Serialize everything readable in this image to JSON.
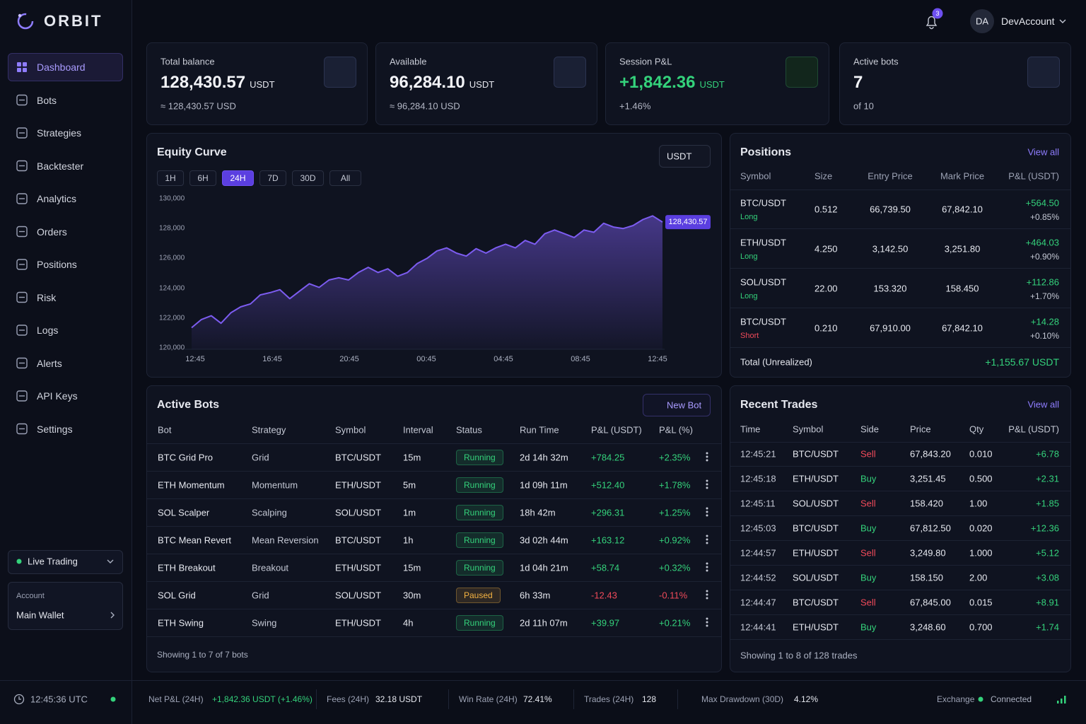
{
  "brand": "ORBIT",
  "nav": [
    "Dashboard",
    "Bots",
    "Strategies",
    "Backtester",
    "Analytics",
    "Orders",
    "Positions",
    "Risk",
    "Logs",
    "Alerts",
    "API Keys",
    "Settings"
  ],
  "active_nav": "Dashboard",
  "mode": "Live Trading",
  "account": {
    "label": "Account",
    "name": "Main Wallet"
  },
  "clock": "12:45:36 UTC",
  "notifications": "3",
  "user": {
    "initials": "DA",
    "name": "DevAccount"
  },
  "colors": {
    "+": "#34d27b",
    "-": "#f04a5a",
    "Long": "#34d27b",
    "Short": "#f04a5a",
    "Buy": "#34d27b",
    "Sell": "#f04a5a",
    "Running": "#34d27b",
    "Paused": "#f5b342"
  },
  "stats": [
    {
      "label": "Total balance",
      "value": "128,430.57",
      "unit": "USDT",
      "sub": "≈ 128,430.57 USD"
    },
    {
      "label": "Available",
      "value": "96,284.10",
      "unit": "USDT",
      "sub": "≈ 96,284.10 USD"
    },
    {
      "label": "Session P&L",
      "value": "+1,842.36",
      "unit": "USDT",
      "sub": "+1.46%"
    },
    {
      "label": "Active bots",
      "value": "7",
      "sub": "of 10"
    }
  ],
  "equity": {
    "currency": "USDT",
    "ranges": [
      "1H",
      "6H",
      "24H",
      "7D",
      "30D",
      "All"
    ],
    "active_range": "24H"
  },
  "chart_data": {
    "type": "line",
    "title": "Equity Curve",
    "color": "#7c5cf0",
    "area": true,
    "grid": false,
    "x_labels": [
      "12:45",
      "16:45",
      "20:45",
      "00:45",
      "04:45",
      "08:45",
      "12:45"
    ],
    "values": [
      121350,
      121900,
      122150,
      121650,
      122350,
      122750,
      122950,
      123550,
      123700,
      123900,
      123300,
      123800,
      124300,
      124050,
      124550,
      124700,
      124550,
      125050,
      125400,
      125050,
      125300,
      124800,
      125050,
      125650,
      126000,
      126500,
      126700,
      126350,
      126150,
      126650,
      126350,
      126700,
      126950,
      126700,
      127200,
      126950,
      127650,
      127900,
      127650,
      127400,
      127900,
      127750,
      128350,
      128100,
      128000,
      128200,
      128600,
      128850,
      128430.57
    ],
    "value_labels": [
      null,
      null,
      null,
      null,
      null,
      null,
      null,
      null,
      null,
      null,
      null,
      null,
      null,
      null,
      null,
      null,
      null,
      null,
      null,
      null,
      null,
      null,
      null,
      null,
      null,
      null,
      null,
      null,
      null,
      null,
      null,
      null,
      null,
      null,
      null,
      null,
      null,
      null,
      null,
      null,
      null,
      null,
      null,
      null,
      null,
      null,
      null,
      null,
      "128,430.57"
    ],
    "ylim": [
      120000,
      130000
    ],
    "yticks": [
      {
        "value": 130000,
        "label": "130,000"
      },
      {
        "value": 128000,
        "label": "128,000"
      },
      {
        "value": 126000,
        "label": "126,000"
      },
      {
        "value": 124000,
        "label": "124,000"
      },
      {
        "value": 122000,
        "label": "122,000"
      },
      {
        "value": 120000,
        "label": "120,000"
      }
    ]
  },
  "positions": {
    "title": "Positions",
    "view_all": "View all",
    "columns": [
      "Symbol",
      "Size",
      "Entry Price",
      "Mark Price",
      "P&L (USDT)"
    ],
    "rows": [
      {
        "symbol": "BTC/USDT",
        "side": "Long",
        "size": "0.512",
        "entry": "66,739.50",
        "mark": "67,842.10",
        "pnl": "+564.50",
        "pnl_pct": "+0.85%"
      },
      {
        "symbol": "ETH/USDT",
        "side": "Long",
        "size": "4.250",
        "entry": "3,142.50",
        "mark": "3,251.80",
        "pnl": "+464.03",
        "pnl_pct": "+0.90%"
      },
      {
        "symbol": "SOL/USDT",
        "side": "Long",
        "size": "22.00",
        "entry": "153.320",
        "mark": "158.450",
        "pnl": "+112.86",
        "pnl_pct": "+1.70%"
      },
      {
        "symbol": "BTC/USDT",
        "side": "Short",
        "size": "0.210",
        "entry": "67,910.00",
        "mark": "67,842.10",
        "pnl": "+14.28",
        "pnl_pct": "+0.10%"
      }
    ],
    "total_label": "Total (Unrealized)",
    "total_value": "+1,155.67 USDT"
  },
  "bots": {
    "title": "Active Bots",
    "new_button": "New Bot",
    "columns": [
      "Bot",
      "Strategy",
      "Symbol",
      "Interval",
      "Status",
      "Run Time",
      "P&L (USDT)",
      "P&L (%)"
    ],
    "rows": [
      [
        "BTC Grid Pro",
        "Grid",
        "BTC/USDT",
        "15m",
        "Running",
        "2d 14h 32m",
        "+784.25",
        "+2.35%"
      ],
      [
        "ETH Momentum",
        "Momentum",
        "ETH/USDT",
        "5m",
        "Running",
        "1d 09h 11m",
        "+512.40",
        "+1.78%"
      ],
      [
        "SOL Scalper",
        "Scalping",
        "SOL/USDT",
        "1m",
        "Running",
        "18h 42m",
        "+296.31",
        "+1.25%"
      ],
      [
        "BTC Mean Revert",
        "Mean Reversion",
        "BTC/USDT",
        "1h",
        "Running",
        "3d 02h 44m",
        "+163.12",
        "+0.92%"
      ],
      [
        "ETH Breakout",
        "Breakout",
        "ETH/USDT",
        "15m",
        "Running",
        "1d 04h 21m",
        "+58.74",
        "+0.32%"
      ],
      [
        "SOL Grid",
        "Grid",
        "SOL/USDT",
        "30m",
        "Paused",
        "6h 33m",
        "-12.43",
        "-0.11%"
      ],
      [
        "ETH Swing",
        "Swing",
        "ETH/USDT",
        "4h",
        "Running",
        "2d 11h 07m",
        "+39.97",
        "+0.21%"
      ]
    ],
    "footer": "Showing 1 to 7 of 7 bots"
  },
  "trades": {
    "title": "Recent Trades",
    "view_all": "View all",
    "columns": [
      "Time",
      "Symbol",
      "Side",
      "Price",
      "Qty",
      "P&L (USDT)"
    ],
    "rows": [
      [
        "12:45:21",
        "BTC/USDT",
        "Sell",
        "67,843.20",
        "0.010",
        "+6.78"
      ],
      [
        "12:45:18",
        "ETH/USDT",
        "Buy",
        "3,251.45",
        "0.500",
        "+2.31"
      ],
      [
        "12:45:11",
        "SOL/USDT",
        "Sell",
        "158.420",
        "1.00",
        "+1.85"
      ],
      [
        "12:45:03",
        "BTC/USDT",
        "Buy",
        "67,812.50",
        "0.020",
        "+12.36"
      ],
      [
        "12:44:57",
        "ETH/USDT",
        "Sell",
        "3,249.80",
        "1.000",
        "+5.12"
      ],
      [
        "12:44:52",
        "SOL/USDT",
        "Buy",
        "158.150",
        "2.00",
        "+3.08"
      ],
      [
        "12:44:47",
        "BTC/USDT",
        "Sell",
        "67,845.00",
        "0.015",
        "+8.91"
      ],
      [
        "12:44:41",
        "ETH/USDT",
        "Buy",
        "3,248.60",
        "0.700",
        "+1.74"
      ]
    ],
    "footer": "Showing 1 to 8 of 128 trades"
  },
  "status_bar": {
    "items": [
      {
        "label": "Net P&L (24H)",
        "value": "+1,842.36 USDT (+1.46%)"
      },
      {
        "label": "Fees (24H)",
        "value": "32.18 USDT"
      },
      {
        "label": "Win Rate (24H)",
        "value": "72.41%"
      },
      {
        "label": "Trades (24H)",
        "value": "128"
      },
      {
        "label": "Max Drawdown (30D)",
        "value": "4.12%"
      }
    ],
    "exchange_label": "Exchange",
    "exchange_status": "Connected"
  }
}
